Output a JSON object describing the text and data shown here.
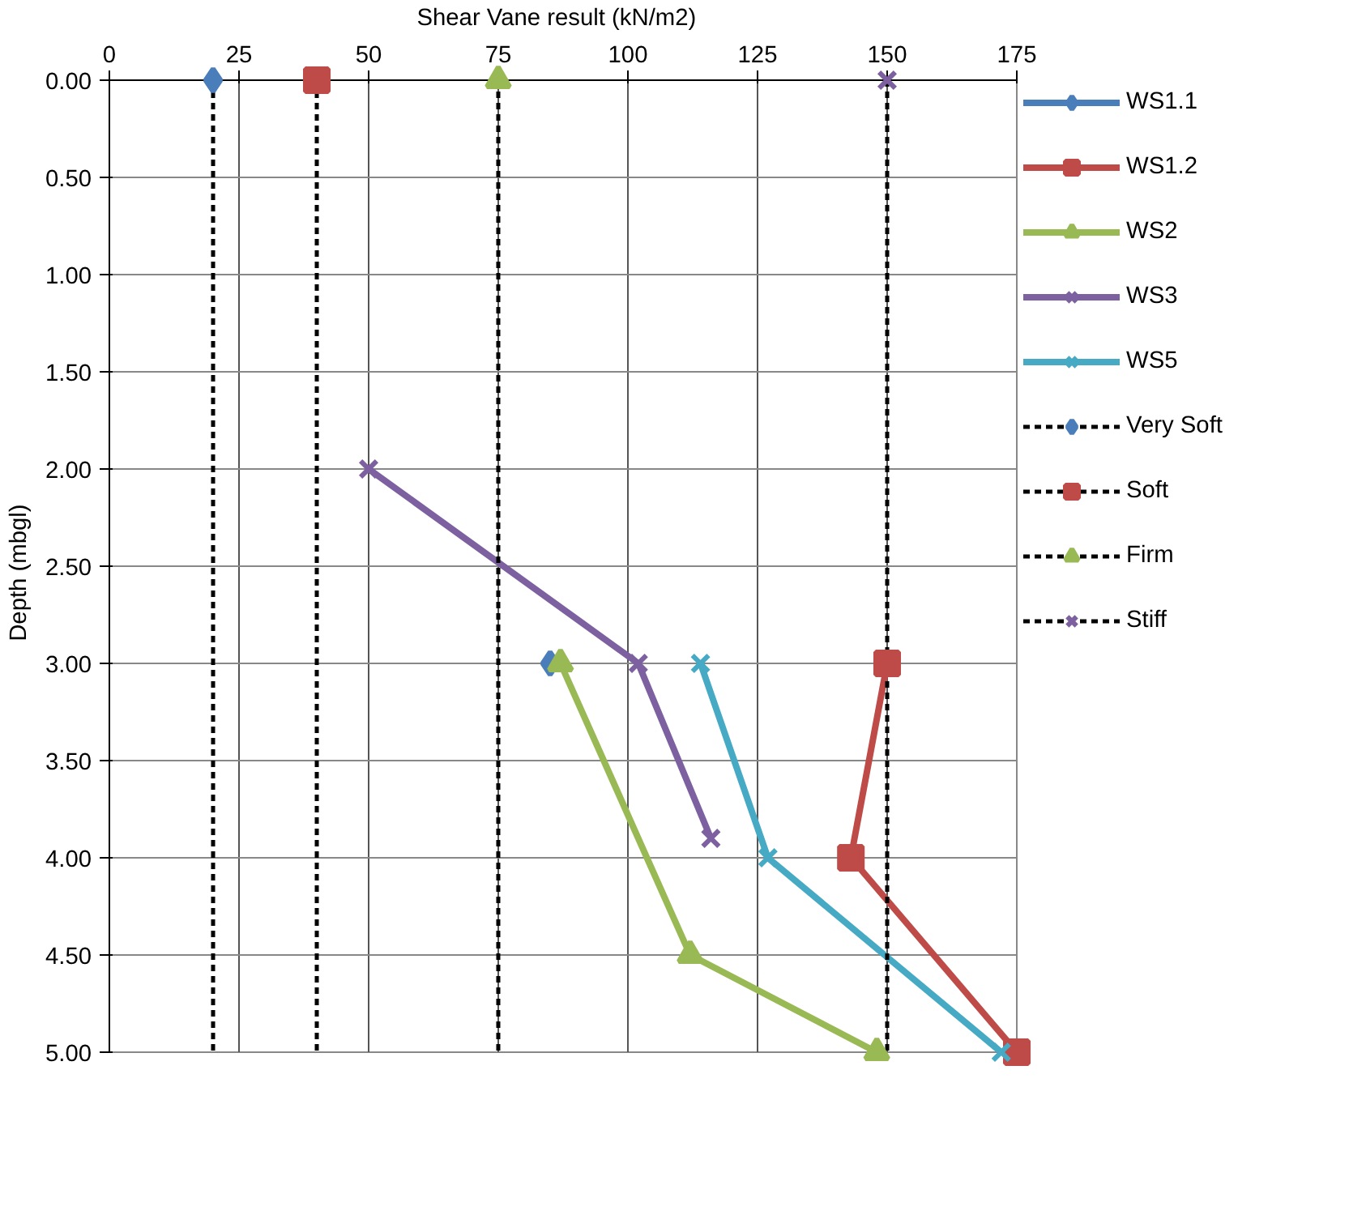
{
  "chart_data": {
    "type": "line",
    "xlabel": "Shear Vane result   (kN/m2)",
    "ylabel": "Depth   (mbgl)",
    "xlim": [
      0,
      175
    ],
    "xticks": [
      0,
      25,
      50,
      75,
      100,
      125,
      150,
      175
    ],
    "ylim": [
      5,
      0
    ],
    "yticks": [
      {
        "value": 0,
        "label": "0.00"
      },
      {
        "value": 0.5,
        "label": "0.50"
      },
      {
        "value": 1,
        "label": "1.00"
      },
      {
        "value": 1.5,
        "label": "1.50"
      },
      {
        "value": 2,
        "label": "2.00"
      },
      {
        "value": 2.5,
        "label": "2.50"
      },
      {
        "value": 3,
        "label": "3.00"
      },
      {
        "value": 3.5,
        "label": "3.50"
      },
      {
        "value": 4,
        "label": "4.00"
      },
      {
        "value": 4.5,
        "label": "4.50"
      },
      {
        "value": 5,
        "label": "5.00"
      }
    ],
    "grid": true,
    "legend": "right",
    "series": [
      {
        "name": "WS1.1",
        "color": "#4a7ebb",
        "marker": "diamond",
        "line_style": "solid",
        "x": [
          85
        ],
        "values": [
          3.0
        ]
      },
      {
        "name": "WS1.2",
        "color": "#be4b48",
        "marker": "square",
        "line_style": "solid",
        "x": [
          150,
          143,
          175
        ],
        "values": [
          3.0,
          4.0,
          5.0
        ]
      },
      {
        "name": "WS2",
        "color": "#98b954",
        "marker": "triangle",
        "line_style": "solid",
        "x": [
          87,
          112,
          148
        ],
        "values": [
          3.0,
          4.5,
          5.0
        ]
      },
      {
        "name": "WS3",
        "color": "#7d60a0",
        "marker": "cross",
        "line_style": "solid",
        "x": [
          50,
          102,
          116
        ],
        "values": [
          2.0,
          3.0,
          3.9
        ]
      },
      {
        "name": "WS5",
        "color": "#46aac5",
        "marker": "cross",
        "line_style": "solid",
        "x": [
          114,
          127,
          172
        ],
        "values": [
          3.0,
          4.0,
          5.0
        ]
      },
      {
        "name": "Very Soft",
        "color": "#000000",
        "colors": [
          "#4a7ebb",
          null
        ],
        "marker": "diamond",
        "line_style": "dashed",
        "x": [
          20,
          20
        ],
        "values": [
          0,
          5
        ]
      },
      {
        "name": "Soft",
        "color": "#000000",
        "colors": [
          "#be4b48",
          null
        ],
        "marker": "square",
        "line_style": "dashed",
        "x": [
          40,
          40
        ],
        "values": [
          0,
          5
        ]
      },
      {
        "name": "Firm",
        "color": "#000000",
        "colors": [
          "#98b954",
          null
        ],
        "marker": "triangle",
        "line_style": "dashed",
        "x": [
          75,
          75
        ],
        "values": [
          0,
          5
        ]
      },
      {
        "name": "Stiff",
        "color": "#000000",
        "colors": [
          "#7d60a0",
          null
        ],
        "marker": "cross",
        "line_style": "dashed",
        "x": [
          150,
          150
        ],
        "values": [
          0,
          5
        ]
      }
    ]
  }
}
